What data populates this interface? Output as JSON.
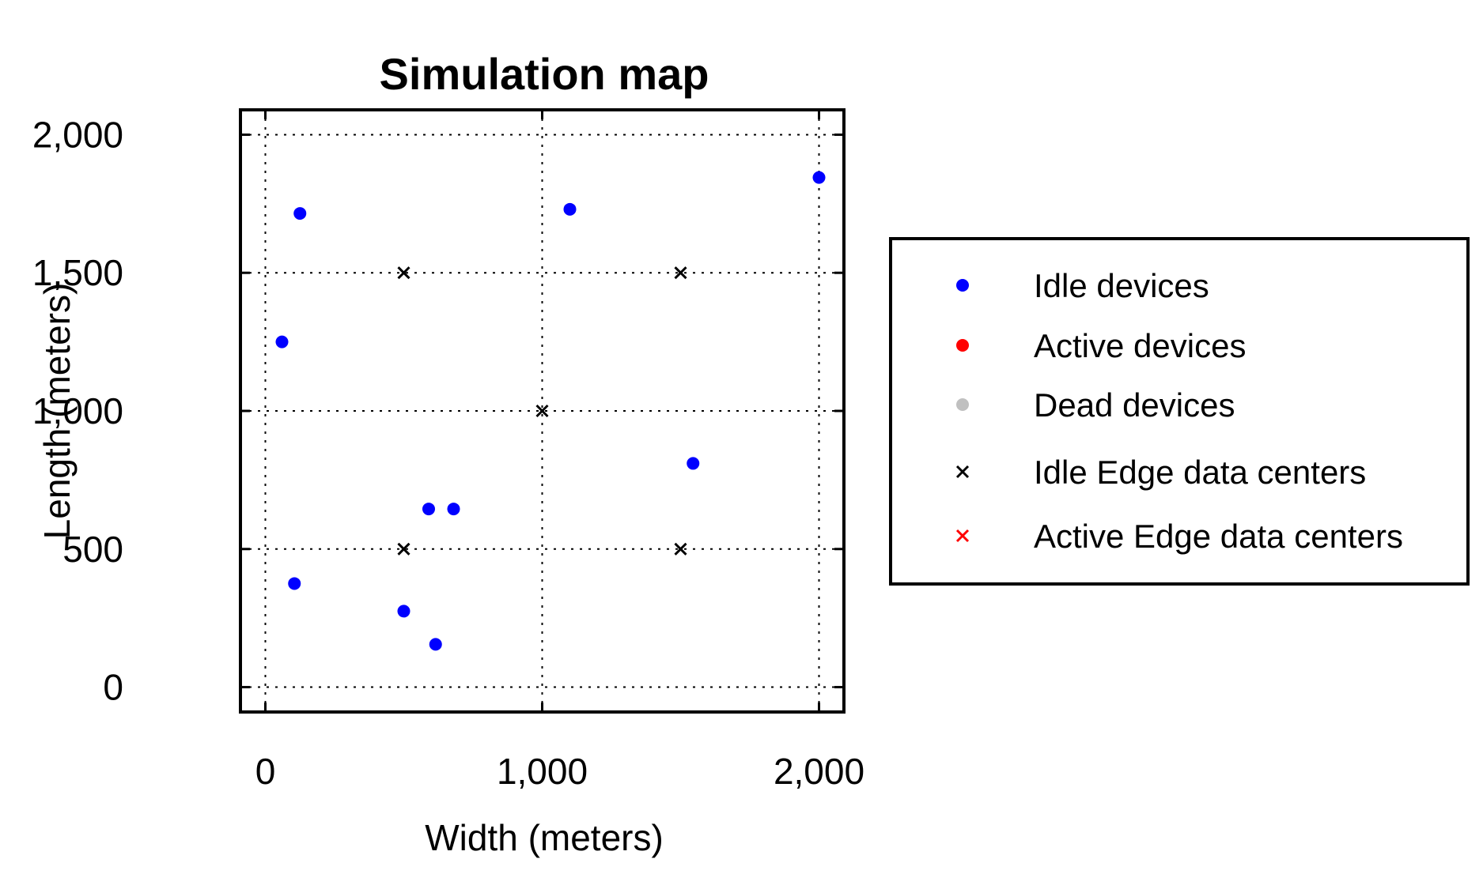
{
  "chart_data": {
    "type": "scatter",
    "title": "Simulation map",
    "xlabel": "Width (meters)",
    "ylabel": "Length (meters)",
    "xlim": [
      -90,
      2090
    ],
    "ylim": [
      -90,
      2090
    ],
    "x_ticks": [
      0,
      1000,
      2000
    ],
    "x_tick_labels": [
      "0",
      "1,000",
      "2,000"
    ],
    "y_ticks": [
      0,
      500,
      1000,
      1500,
      2000
    ],
    "y_tick_labels": [
      "0",
      "500",
      "1,000",
      "1,500",
      "2,000"
    ],
    "grid": true,
    "legend_position": "right",
    "series": [
      {
        "name": "Idle devices",
        "marker": "dot",
        "color": "#0000ff",
        "points": [
          {
            "x": 125,
            "y": 1715
          },
          {
            "x": 60,
            "y": 1250
          },
          {
            "x": 105,
            "y": 375
          },
          {
            "x": 500,
            "y": 275
          },
          {
            "x": 615,
            "y": 155
          },
          {
            "x": 590,
            "y": 645
          },
          {
            "x": 680,
            "y": 645
          },
          {
            "x": 1100,
            "y": 1730
          },
          {
            "x": 2000,
            "y": 1845
          },
          {
            "x": 1545,
            "y": 810
          }
        ]
      },
      {
        "name": "Active devices",
        "marker": "dot",
        "color": "#ff0000",
        "points": []
      },
      {
        "name": "Dead devices",
        "marker": "dot",
        "color": "#c0c0c0",
        "points": []
      },
      {
        "name": "Idle Edge data centers",
        "marker": "cross",
        "color": "#000000",
        "points": [
          {
            "x": 500,
            "y": 1500
          },
          {
            "x": 1500,
            "y": 1500
          },
          {
            "x": 1000,
            "y": 1000
          },
          {
            "x": 500,
            "y": 500
          },
          {
            "x": 1500,
            "y": 500
          }
        ]
      },
      {
        "name": "Active Edge data centers",
        "marker": "cross",
        "color": "#ff0000",
        "points": []
      }
    ]
  }
}
